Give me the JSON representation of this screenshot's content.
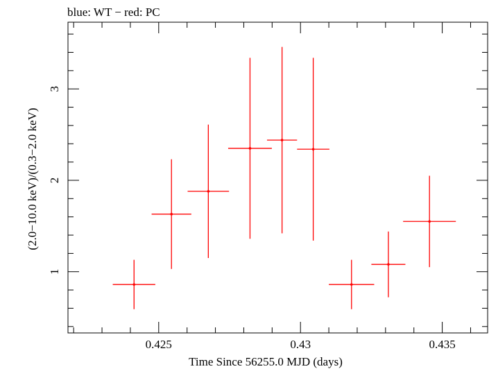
{
  "chart_data": {
    "type": "scatter",
    "title": "blue: WT − red: PC",
    "xlabel": "Time Since 56255.0 MJD (days)",
    "ylabel": "(2.0−10.0 keV)/(0.3−2.0 keV)",
    "xlim": [
      0.4218,
      0.4366
    ],
    "ylim": [
      0.33,
      3.73
    ],
    "x_ticks": [
      0.425,
      0.43,
      0.435
    ],
    "x_tick_labels": [
      "0.425",
      "0.43",
      "0.435"
    ],
    "y_ticks": [
      1,
      2,
      3
    ],
    "y_tick_labels": [
      "1",
      "2",
      "3"
    ],
    "grid": false,
    "series": [
      {
        "color": "#ff0000",
        "points": [
          {
            "x": 0.42413,
            "x_err": 0.00075,
            "y": 0.86,
            "y_err": 0.27
          },
          {
            "x": 0.42545,
            "x_err": 0.0007,
            "y": 1.63,
            "y_err": 0.6
          },
          {
            "x": 0.42675,
            "x_err": 0.00073,
            "y": 1.88,
            "y_err": 0.73
          },
          {
            "x": 0.42822,
            "x_err": 0.00077,
            "y": 2.35,
            "y_err": 0.99
          },
          {
            "x": 0.42935,
            "x_err": 0.00053,
            "y": 2.44,
            "y_err": 1.02
          },
          {
            "x": 0.43045,
            "x_err": 0.00057,
            "y": 2.34,
            "y_err": 1.0
          },
          {
            "x": 0.4318,
            "x_err": 0.0008,
            "y": 0.86,
            "y_err": 0.27
          },
          {
            "x": 0.4331,
            "x_err": 0.0006,
            "y": 1.08,
            "y_err": 0.36
          },
          {
            "x": 0.43455,
            "x_err": 0.00093,
            "y": 1.55,
            "y_err": 0.5
          }
        ]
      }
    ]
  }
}
